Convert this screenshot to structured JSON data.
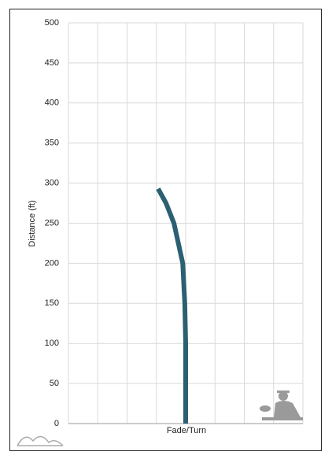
{
  "chart_data": {
    "type": "line",
    "y_label": "Distance (ft)",
    "x_label": "Fade/Turn",
    "series": [
      {
        "color": "#2b6073",
        "x": [
          0,
          0,
          0,
          -0.03,
          -0.1,
          -0.4,
          -0.67,
          -0.94
        ],
        "values": [
          0,
          50,
          100,
          150,
          200,
          250,
          275,
          293
        ]
      }
    ],
    "xlim": [
      -4,
      4
    ],
    "ylim": [
      0,
      500
    ],
    "yticks": [
      0,
      50,
      100,
      150,
      200,
      250,
      300,
      350,
      400,
      450,
      500
    ],
    "grid": true
  }
}
